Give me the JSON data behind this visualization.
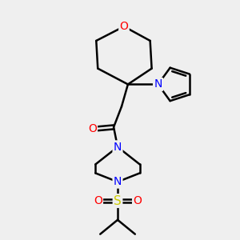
{
  "background_color": "#efefef",
  "atom_colors": {
    "O": "#ff0000",
    "N": "#0000ff",
    "S": "#cccc00",
    "C": "#000000",
    "bond": "#000000"
  },
  "figsize": [
    3.0,
    3.0
  ],
  "dpi": 100
}
